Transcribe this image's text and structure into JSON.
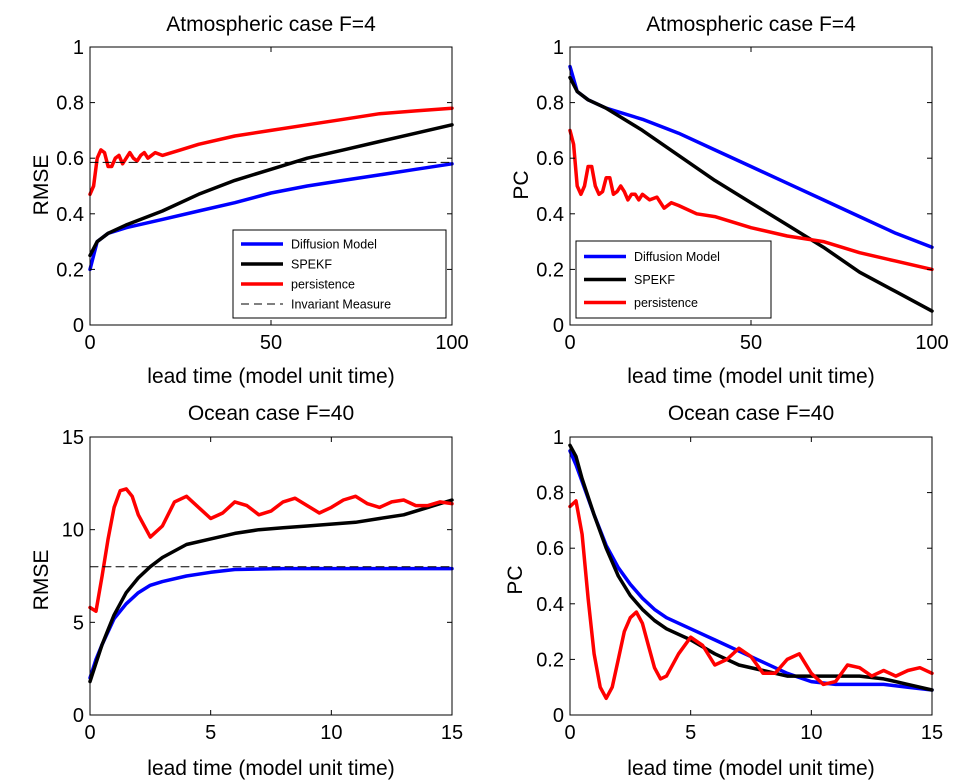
{
  "chart_data": [
    {
      "type": "line",
      "title": "Atmospheric case F=4",
      "xlabel": "lead time (model unit time)",
      "ylabel": "RMSE",
      "xlim": [
        0,
        100
      ],
      "ylim": [
        0,
        1
      ],
      "xticks": [
        0,
        50,
        100
      ],
      "yticks": [
        0,
        0.2,
        0.4,
        0.6,
        0.8,
        1
      ],
      "ytick_labels": [
        "0",
        "0.2",
        "0.4",
        "0.6",
        "0.8",
        "1"
      ],
      "legend": "bottom-right",
      "series": [
        {
          "name": "Diffusion Model",
          "color": "#0000ff",
          "style": "solid",
          "x": [
            0,
            2,
            5,
            10,
            20,
            30,
            40,
            50,
            60,
            70,
            80,
            90,
            100
          ],
          "y": [
            0.2,
            0.3,
            0.33,
            0.35,
            0.38,
            0.41,
            0.44,
            0.475,
            0.5,
            0.52,
            0.54,
            0.56,
            0.58
          ]
        },
        {
          "name": "SPEKF",
          "color": "#000000",
          "style": "solid",
          "x": [
            0,
            2,
            5,
            10,
            20,
            30,
            40,
            50,
            60,
            70,
            80,
            90,
            100
          ],
          "y": [
            0.25,
            0.3,
            0.33,
            0.36,
            0.41,
            0.47,
            0.52,
            0.56,
            0.6,
            0.63,
            0.66,
            0.69,
            0.72
          ]
        },
        {
          "name": "persistence",
          "color": "#ff0000",
          "style": "solid",
          "x": [
            0,
            1,
            2,
            3,
            4,
            5,
            6,
            7,
            8,
            9,
            10,
            11,
            12,
            13,
            14,
            15,
            16,
            18,
            20,
            25,
            30,
            40,
            50,
            60,
            70,
            80,
            90,
            100
          ],
          "y": [
            0.47,
            0.5,
            0.6,
            0.63,
            0.62,
            0.57,
            0.57,
            0.6,
            0.61,
            0.58,
            0.6,
            0.62,
            0.6,
            0.59,
            0.61,
            0.62,
            0.6,
            0.62,
            0.61,
            0.63,
            0.65,
            0.68,
            0.7,
            0.72,
            0.74,
            0.76,
            0.77,
            0.78
          ]
        },
        {
          "name": "Invariant Measure",
          "color": "#000000",
          "style": "dashed",
          "x": [
            0,
            100
          ],
          "y": [
            0.585,
            0.585
          ]
        }
      ]
    },
    {
      "type": "line",
      "title": "Atmospheric case F=4",
      "xlabel": "lead time (model unit time)",
      "ylabel": "PC",
      "xlim": [
        0,
        100
      ],
      "ylim": [
        0,
        1
      ],
      "xticks": [
        0,
        50,
        100
      ],
      "yticks": [
        0,
        0.2,
        0.4,
        0.6,
        0.8,
        1
      ],
      "ytick_labels": [
        "0",
        "0.2",
        "0.4",
        "0.6",
        "0.8",
        "1"
      ],
      "legend": "bottom-left",
      "series": [
        {
          "name": "Diffusion Model",
          "color": "#0000ff",
          "style": "solid",
          "x": [
            0,
            2,
            5,
            10,
            20,
            30,
            40,
            50,
            60,
            70,
            80,
            90,
            100
          ],
          "y": [
            0.93,
            0.84,
            0.81,
            0.78,
            0.74,
            0.69,
            0.63,
            0.57,
            0.51,
            0.45,
            0.39,
            0.33,
            0.28
          ]
        },
        {
          "name": "SPEKF",
          "color": "#000000",
          "style": "solid",
          "x": [
            0,
            2,
            5,
            10,
            20,
            30,
            40,
            50,
            60,
            70,
            80,
            90,
            100
          ],
          "y": [
            0.89,
            0.84,
            0.81,
            0.78,
            0.7,
            0.61,
            0.52,
            0.44,
            0.36,
            0.28,
            0.19,
            0.12,
            0.05
          ]
        },
        {
          "name": "persistence",
          "color": "#ff0000",
          "style": "solid",
          "x": [
            0,
            1,
            2,
            3,
            4,
            5,
            6,
            7,
            8,
            9,
            10,
            11,
            12,
            13,
            14,
            15,
            16,
            17,
            18,
            19,
            20,
            22,
            24,
            26,
            28,
            30,
            35,
            40,
            50,
            60,
            70,
            80,
            90,
            100
          ],
          "y": [
            0.7,
            0.65,
            0.5,
            0.47,
            0.5,
            0.57,
            0.57,
            0.5,
            0.47,
            0.48,
            0.53,
            0.53,
            0.47,
            0.48,
            0.5,
            0.48,
            0.45,
            0.47,
            0.47,
            0.45,
            0.47,
            0.45,
            0.46,
            0.42,
            0.44,
            0.43,
            0.4,
            0.39,
            0.35,
            0.32,
            0.3,
            0.26,
            0.23,
            0.2
          ]
        }
      ]
    },
    {
      "type": "line",
      "title": "Ocean case F=40",
      "xlabel": "lead time (model unit time)",
      "ylabel": "RMSE",
      "xlim": [
        0,
        15
      ],
      "ylim": [
        0,
        15
      ],
      "xticks": [
        0,
        5,
        10,
        15
      ],
      "yticks": [
        0,
        5,
        10,
        15
      ],
      "ytick_labels": [
        "0",
        "5",
        "10",
        "15"
      ],
      "series": [
        {
          "color": "#0000ff",
          "style": "solid",
          "x": [
            0,
            0.25,
            0.5,
            0.75,
            1,
            1.5,
            2,
            2.5,
            3,
            4,
            5,
            6,
            8,
            10,
            12,
            15
          ],
          "y": [
            2,
            3,
            3.8,
            4.5,
            5.2,
            6,
            6.6,
            7.0,
            7.2,
            7.5,
            7.7,
            7.85,
            7.9,
            7.9,
            7.9,
            7.9
          ]
        },
        {
          "color": "#000000",
          "style": "solid",
          "x": [
            0,
            0.25,
            0.5,
            0.75,
            1,
            1.5,
            2,
            2.5,
            3,
            4,
            5,
            6,
            7,
            8,
            9,
            10,
            11,
            12,
            13,
            14,
            15
          ],
          "y": [
            1.8,
            2.8,
            3.8,
            4.6,
            5.4,
            6.6,
            7.4,
            8.0,
            8.5,
            9.2,
            9.5,
            9.8,
            10.0,
            10.1,
            10.2,
            10.3,
            10.4,
            10.6,
            10.8,
            11.2,
            11.6
          ]
        },
        {
          "color": "#ff0000",
          "style": "solid",
          "x": [
            0,
            0.25,
            0.5,
            0.75,
            1,
            1.25,
            1.5,
            1.75,
            2,
            2.5,
            3,
            3.5,
            4,
            4.5,
            5,
            5.5,
            6,
            6.5,
            7,
            7.5,
            8,
            8.5,
            9,
            9.5,
            10,
            10.5,
            11,
            11.5,
            12,
            12.5,
            13,
            13.5,
            14,
            14.5,
            15
          ],
          "y": [
            5.8,
            5.6,
            7.5,
            9.5,
            11.2,
            12.1,
            12.2,
            11.8,
            10.8,
            9.6,
            10.2,
            11.5,
            11.8,
            11.2,
            10.6,
            10.9,
            11.5,
            11.3,
            10.8,
            11.0,
            11.5,
            11.7,
            11.3,
            10.9,
            11.2,
            11.6,
            11.8,
            11.4,
            11.2,
            11.5,
            11.6,
            11.3,
            11.3,
            11.5,
            11.4
          ]
        },
        {
          "color": "#000000",
          "style": "dashed",
          "x": [
            0,
            15
          ],
          "y": [
            8.0,
            8.0
          ]
        }
      ]
    },
    {
      "type": "line",
      "title": "Ocean case F=40",
      "xlabel": "lead time (model unit time)",
      "ylabel": "PC",
      "xlim": [
        0,
        15
      ],
      "ylim": [
        0,
        1
      ],
      "xticks": [
        0,
        5,
        10,
        15
      ],
      "yticks": [
        0,
        0.2,
        0.4,
        0.6,
        0.8,
        1
      ],
      "ytick_labels": [
        "0",
        "0.2",
        "0.4",
        "0.6",
        "0.8",
        "1"
      ],
      "series": [
        {
          "color": "#0000ff",
          "style": "solid",
          "x": [
            0,
            0.25,
            0.5,
            1,
            1.5,
            2,
            2.5,
            3,
            3.5,
            4,
            5,
            6,
            7,
            8,
            9,
            10,
            11,
            12,
            13,
            14,
            15
          ],
          "y": [
            0.95,
            0.9,
            0.84,
            0.72,
            0.61,
            0.53,
            0.47,
            0.42,
            0.38,
            0.35,
            0.31,
            0.27,
            0.23,
            0.19,
            0.15,
            0.12,
            0.11,
            0.11,
            0.11,
            0.1,
            0.09
          ]
        },
        {
          "color": "#000000",
          "style": "solid",
          "x": [
            0,
            0.25,
            0.5,
            1,
            1.5,
            2,
            2.5,
            3,
            3.5,
            4,
            5,
            6,
            7,
            8,
            9,
            10,
            11,
            12,
            13,
            14,
            15
          ],
          "y": [
            0.97,
            0.93,
            0.85,
            0.72,
            0.6,
            0.5,
            0.43,
            0.38,
            0.34,
            0.31,
            0.27,
            0.22,
            0.18,
            0.16,
            0.14,
            0.14,
            0.14,
            0.14,
            0.13,
            0.11,
            0.09
          ]
        },
        {
          "color": "#ff0000",
          "style": "solid",
          "x": [
            0,
            0.25,
            0.5,
            0.75,
            1,
            1.25,
            1.5,
            1.75,
            2,
            2.25,
            2.5,
            2.75,
            3,
            3.25,
            3.5,
            3.75,
            4,
            4.5,
            5,
            5.5,
            6,
            6.5,
            7,
            7.5,
            8,
            8.5,
            9,
            9.5,
            10,
            10.5,
            11,
            11.5,
            12,
            12.5,
            13,
            13.5,
            14,
            14.5,
            15
          ],
          "y": [
            0.75,
            0.77,
            0.65,
            0.42,
            0.22,
            0.1,
            0.06,
            0.1,
            0.2,
            0.3,
            0.35,
            0.37,
            0.33,
            0.25,
            0.17,
            0.13,
            0.14,
            0.22,
            0.28,
            0.25,
            0.18,
            0.2,
            0.24,
            0.21,
            0.15,
            0.15,
            0.2,
            0.22,
            0.15,
            0.11,
            0.12,
            0.18,
            0.17,
            0.14,
            0.16,
            0.14,
            0.16,
            0.17,
            0.15
          ]
        }
      ]
    }
  ]
}
